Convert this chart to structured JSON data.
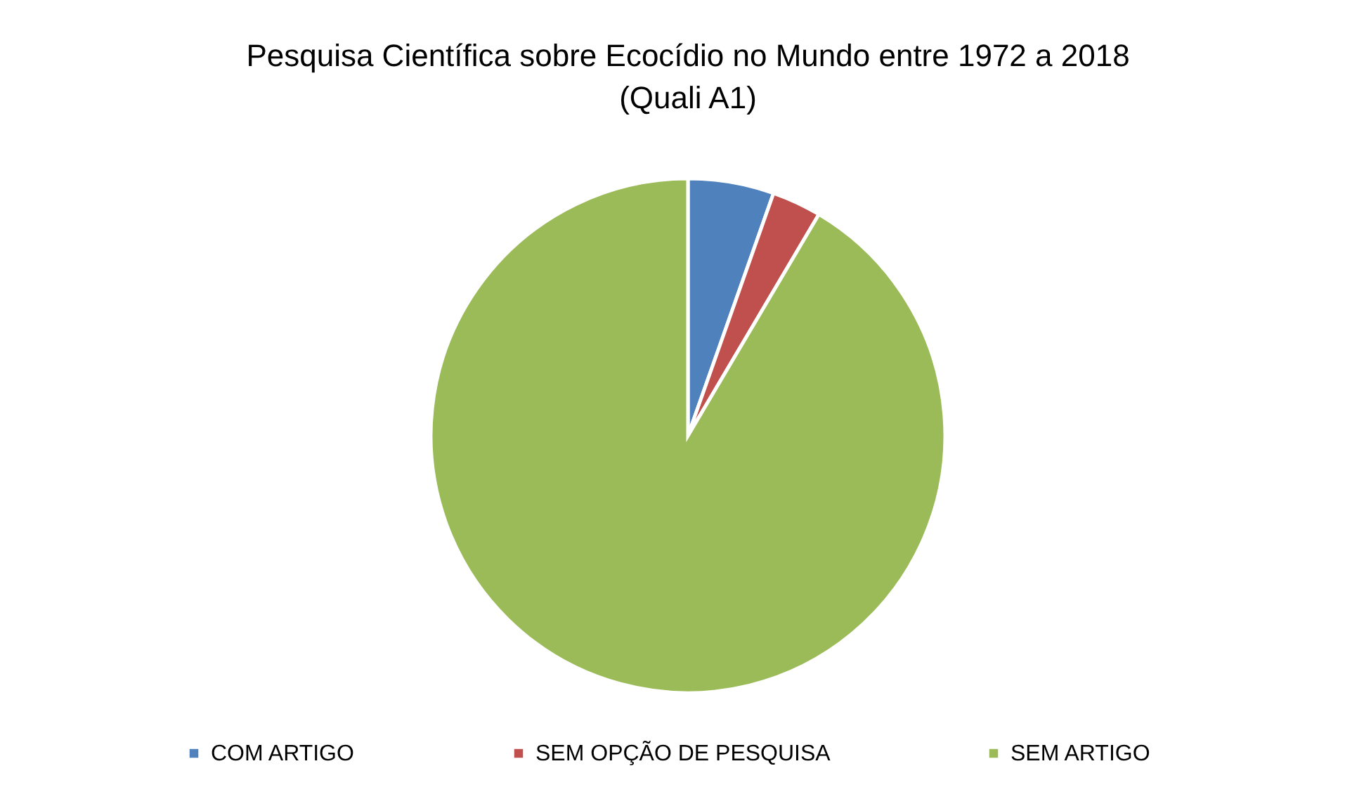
{
  "chart_data": {
    "type": "pie",
    "title": "Pesquisa Científica sobre Ecocídio no Mundo entre 1972 a 2018\n(Quali A1)",
    "categories": [
      "COM ARTIGO",
      "SEM OPÇÃO DE PESQUISA",
      "SEM ARTIGO"
    ],
    "values": [
      5.4,
      3.1,
      91.5
    ],
    "colors": [
      "#4f81bd",
      "#c0504d",
      "#9bbb59"
    ],
    "legend": "bottom"
  }
}
